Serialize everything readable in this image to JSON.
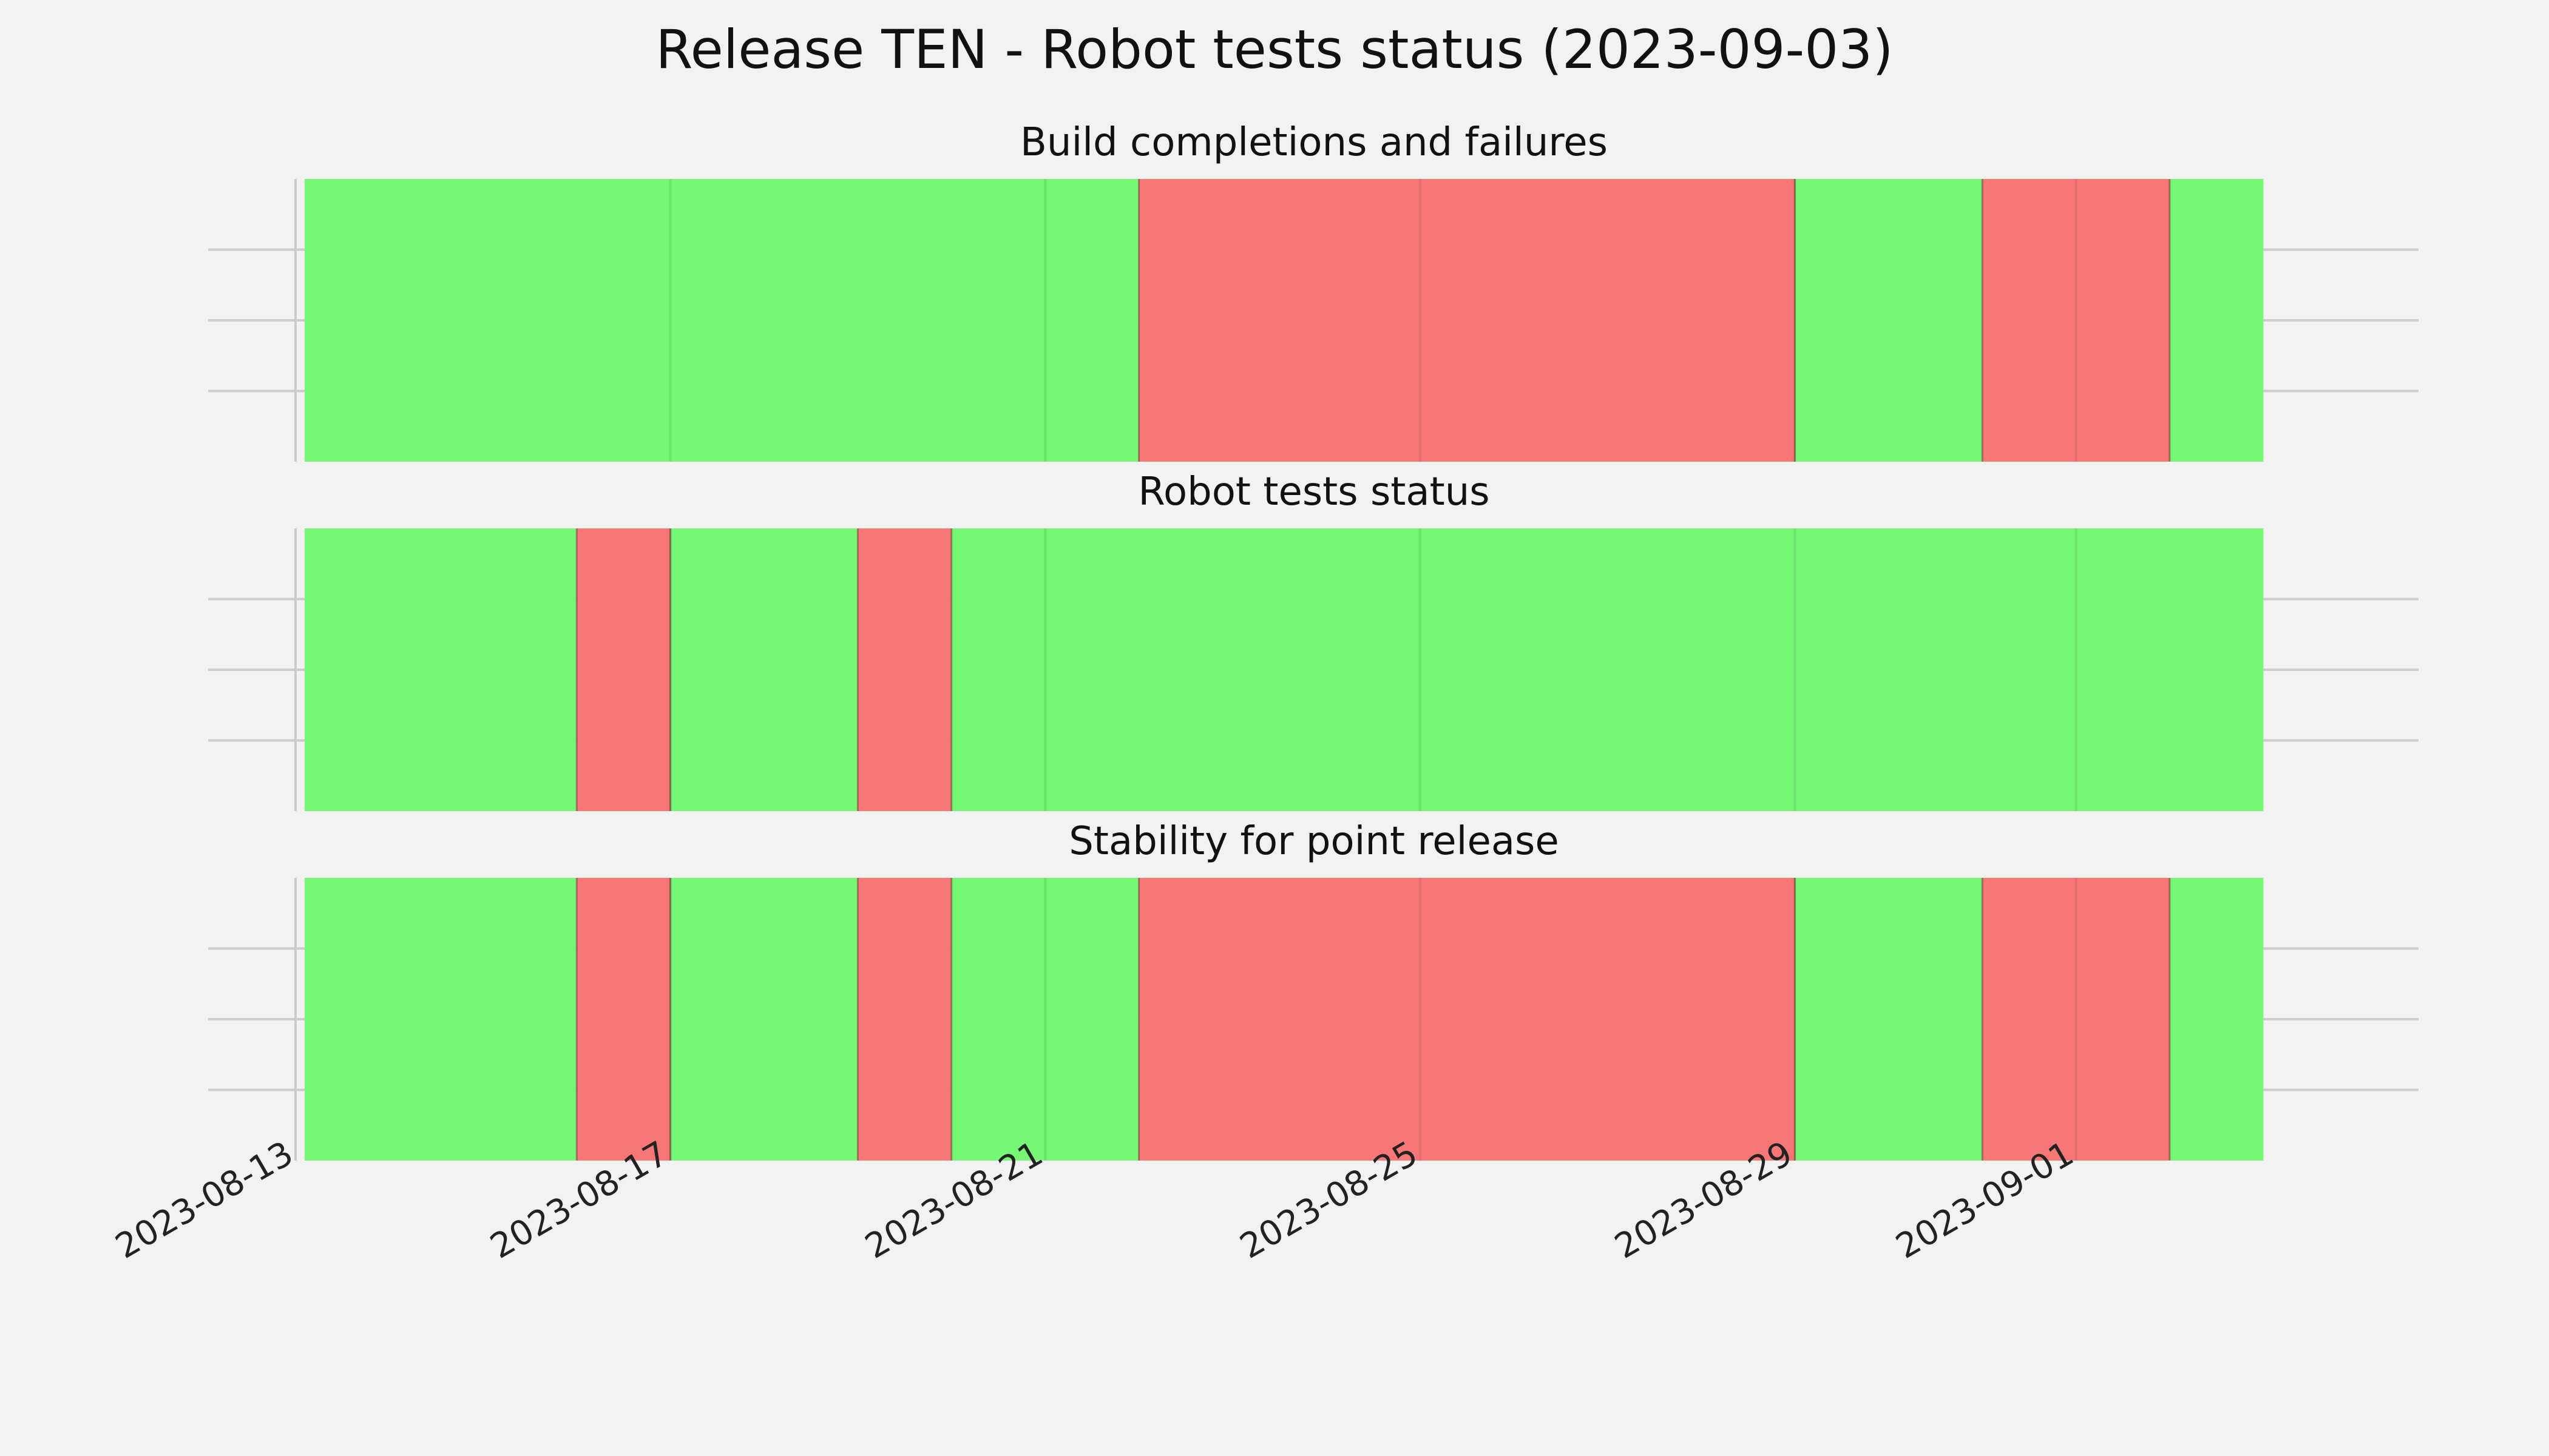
{
  "chart_data": {
    "type": "timeline",
    "title": "Release TEN - Robot tests status (2023-09-03)",
    "xlim": [
      "2023-08-13",
      "2023-09-04"
    ],
    "x_ticks": [
      "2023-08-13",
      "2023-08-17",
      "2023-08-21",
      "2023-08-25",
      "2023-08-29",
      "2023-09-01"
    ],
    "grid": true,
    "legend": "none",
    "colors": {
      "pass": "#76f776",
      "fail": "#f77676",
      "background": "#f2f2f2",
      "grid": "#cccccc"
    },
    "panels": [
      {
        "title": "Build completions and failures",
        "segments": [
          {
            "start": "2023-08-13",
            "end": "2023-08-22",
            "status": "pass"
          },
          {
            "start": "2023-08-22",
            "end": "2023-08-29",
            "status": "fail"
          },
          {
            "start": "2023-08-29",
            "end": "2023-08-31",
            "status": "pass"
          },
          {
            "start": "2023-08-31",
            "end": "2023-09-02",
            "status": "fail"
          },
          {
            "start": "2023-09-02",
            "end": "2023-09-03",
            "status": "pass"
          }
        ]
      },
      {
        "title": "Robot tests status",
        "segments": [
          {
            "start": "2023-08-13",
            "end": "2023-08-16",
            "status": "pass"
          },
          {
            "start": "2023-08-16",
            "end": "2023-08-17",
            "status": "fail"
          },
          {
            "start": "2023-08-17",
            "end": "2023-08-19",
            "status": "pass"
          },
          {
            "start": "2023-08-19",
            "end": "2023-08-20",
            "status": "fail"
          },
          {
            "start": "2023-08-20",
            "end": "2023-09-03",
            "status": "pass"
          }
        ]
      },
      {
        "title": "Stability for point release",
        "segments": [
          {
            "start": "2023-08-13",
            "end": "2023-08-16",
            "status": "pass"
          },
          {
            "start": "2023-08-16",
            "end": "2023-08-17",
            "status": "fail"
          },
          {
            "start": "2023-08-17",
            "end": "2023-08-19",
            "status": "pass"
          },
          {
            "start": "2023-08-19",
            "end": "2023-08-20",
            "status": "fail"
          },
          {
            "start": "2023-08-20",
            "end": "2023-08-22",
            "status": "pass"
          },
          {
            "start": "2023-08-22",
            "end": "2023-08-29",
            "status": "fail"
          },
          {
            "start": "2023-08-29",
            "end": "2023-08-31",
            "status": "pass"
          },
          {
            "start": "2023-08-31",
            "end": "2023-09-02",
            "status": "fail"
          },
          {
            "start": "2023-09-02",
            "end": "2023-09-03",
            "status": "pass"
          }
        ]
      }
    ]
  }
}
